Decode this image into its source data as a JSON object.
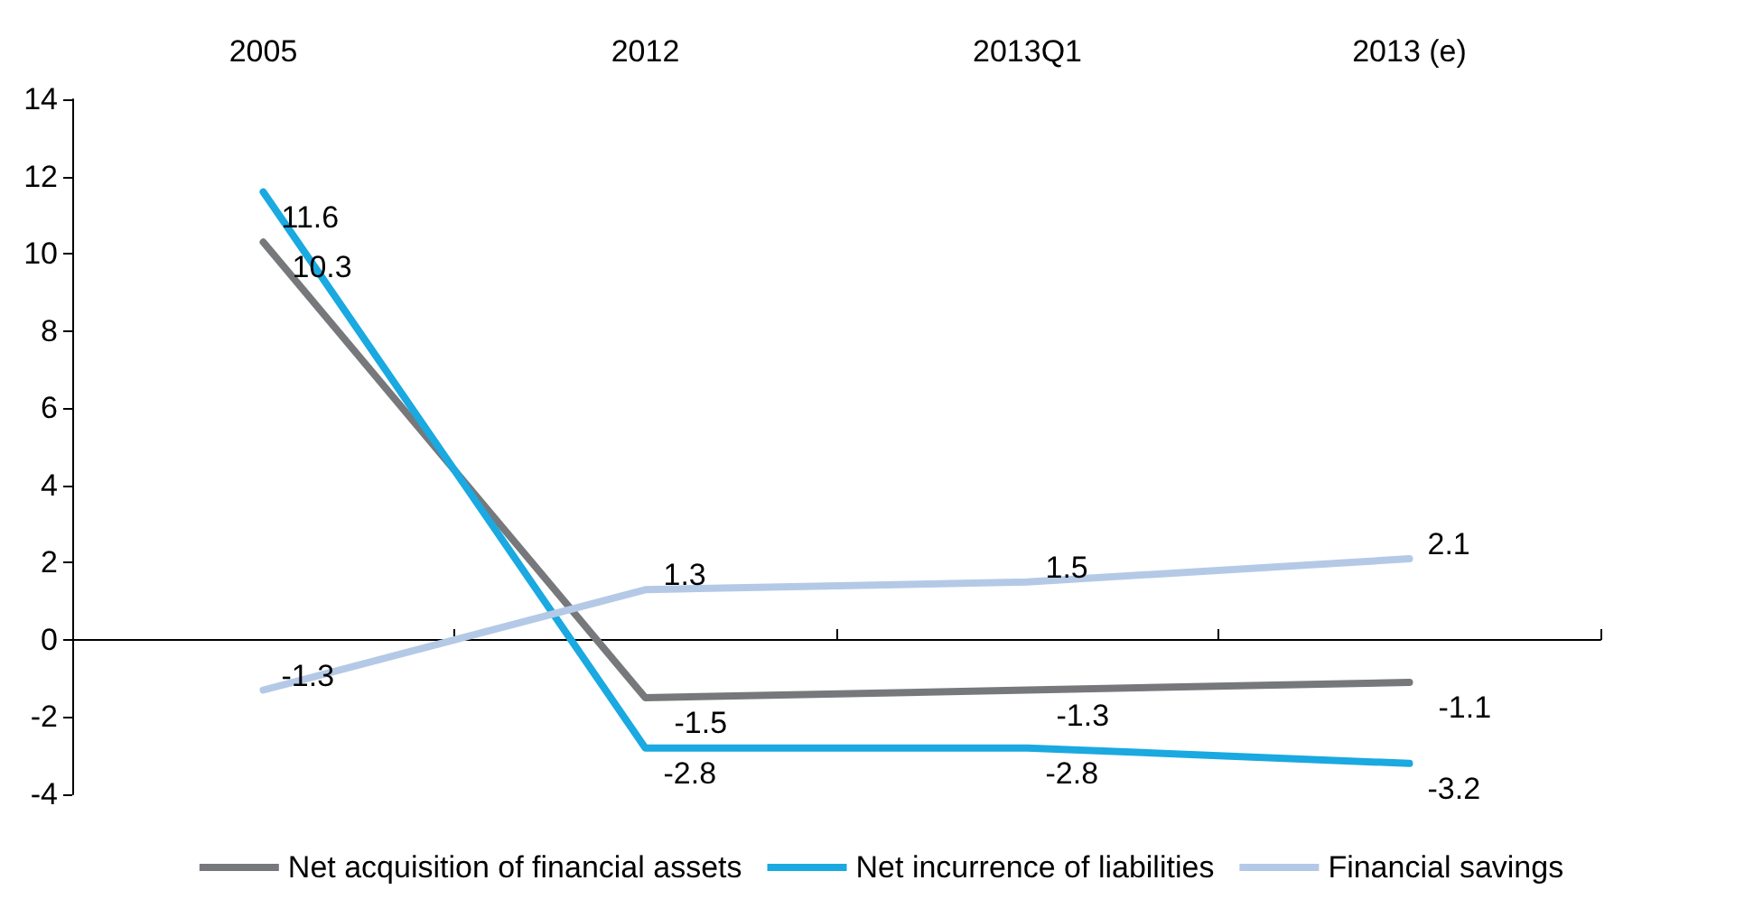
{
  "chart_data": {
    "type": "line",
    "categories": [
      "2005",
      "2012",
      "2013Q1",
      "2013 (e)"
    ],
    "series": [
      {
        "name": "Net acquisition of financial assets",
        "color": "#77787b",
        "values": [
          10.3,
          -1.5,
          -1.3,
          -1.1
        ]
      },
      {
        "name": "Net incurrence of liabilities",
        "color": "#1aa9e0",
        "values": [
          11.6,
          -2.8,
          -2.8,
          -3.2
        ]
      },
      {
        "name": "Financial savings",
        "color": "#b4c9e6",
        "values": [
          -1.3,
          1.3,
          1.5,
          2.1
        ]
      }
    ],
    "ylim": [
      -4,
      14
    ],
    "yticks": [
      -4,
      -2,
      0,
      2,
      4,
      6,
      8,
      10,
      12,
      14
    ],
    "legend": "bottom",
    "marker": "none",
    "line_style": "solid",
    "data_labels": true
  }
}
